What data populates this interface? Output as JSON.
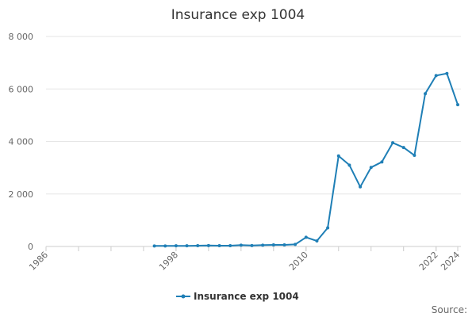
{
  "chart_data": {
    "type": "line",
    "title": "Insurance exp 1004",
    "xlabel": "",
    "ylabel": "",
    "x_ticks": [
      "1986",
      "1998",
      "2010",
      "2022",
      "2024"
    ],
    "y_ticks": [
      "0",
      "2 000",
      "4 000",
      "6 000",
      "8 000"
    ],
    "xlim": [
      1986,
      2024
    ],
    "ylim": [
      0,
      8000
    ],
    "grid": true,
    "legend_position": "bottom",
    "series": [
      {
        "name": "Insurance exp 1004",
        "color": "#1f7fb6",
        "x": [
          1996,
          1997,
          1998,
          1999,
          2000,
          2001,
          2002,
          2003,
          2004,
          2005,
          2006,
          2007,
          2008,
          2009,
          2010,
          2011,
          2012,
          2013,
          2014,
          2015,
          2016,
          2017,
          2018,
          2019,
          2020,
          2021,
          2022,
          2023,
          2024
        ],
        "y": [
          20,
          20,
          25,
          25,
          30,
          35,
          30,
          30,
          50,
          35,
          50,
          60,
          60,
          80,
          350,
          210,
          710,
          3450,
          3100,
          2270,
          3010,
          3220,
          3950,
          3770,
          3470,
          5820,
          6510,
          6590,
          5400
        ]
      }
    ]
  },
  "source_label": "Source:"
}
